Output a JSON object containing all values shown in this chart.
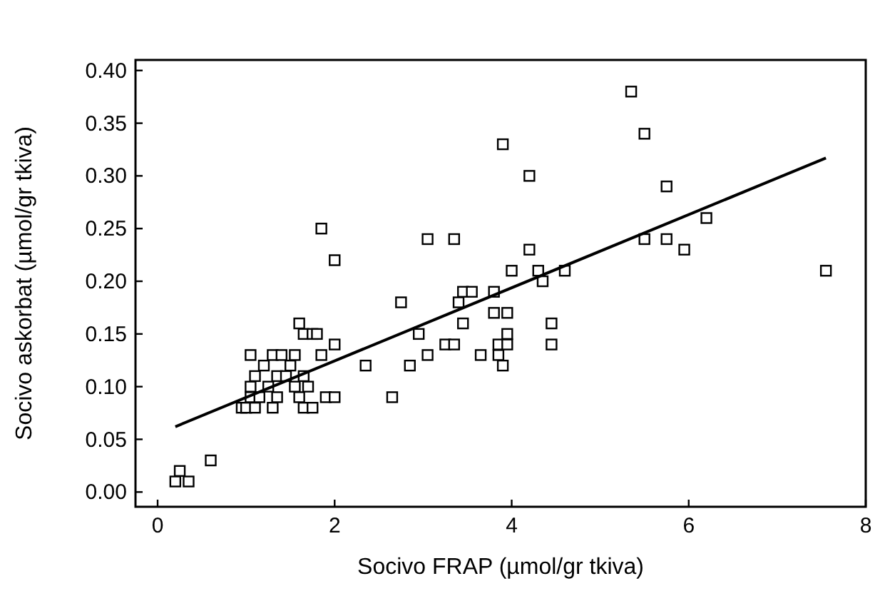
{
  "chart_data": {
    "type": "scatter",
    "xlabel": "Socivo FRAP (µmol/gr tkiva)",
    "ylabel": "Socivo askorbat (µmol/gr tkiva)",
    "xlim": [
      -0.25,
      8
    ],
    "ylim": [
      -0.014,
      0.41
    ],
    "xticks": [
      0,
      2,
      4,
      6,
      8
    ],
    "yticks": [
      {
        "value": 0,
        "label": "0.00"
      },
      {
        "value": 0.05,
        "label": "0.05"
      },
      {
        "value": 0.1,
        "label": "0.10"
      },
      {
        "value": 0.15,
        "label": "0.15"
      },
      {
        "value": 0.2,
        "label": "0.20"
      },
      {
        "value": 0.25,
        "label": "0.25"
      },
      {
        "value": 0.3,
        "label": "0.30"
      },
      {
        "value": 0.35,
        "label": "0.35"
      },
      {
        "value": 0.4,
        "label": "0.40"
      }
    ],
    "grid": false,
    "series": [
      {
        "color": "#000000",
        "marker": "square",
        "x": [
          0.2,
          0.25,
          0.35,
          0.6,
          0.95,
          1.0,
          1.05,
          1.05,
          1.05,
          1.1,
          1.1,
          1.15,
          1.2,
          1.25,
          1.3,
          1.3,
          1.35,
          1.35,
          1.4,
          1.45,
          1.5,
          1.55,
          1.55,
          1.6,
          1.6,
          1.65,
          1.65,
          1.65,
          1.7,
          1.75,
          1.75,
          1.8,
          1.85,
          1.85,
          1.9,
          2.0,
          2.0,
          2.0,
          2.35,
          2.65,
          2.75,
          2.85,
          2.95,
          3.05,
          3.05,
          3.25,
          3.35,
          3.35,
          3.4,
          3.45,
          3.45,
          3.55,
          3.65,
          3.8,
          3.8,
          3.85,
          3.85,
          3.9,
          3.9,
          3.95,
          3.95,
          3.95,
          4.0,
          4.2,
          4.2,
          4.3,
          4.35,
          4.45,
          4.45,
          4.6,
          5.35,
          5.5,
          5.5,
          5.75,
          5.75,
          5.95,
          6.2,
          7.55
        ],
        "values": [
          0.01,
          0.02,
          0.01,
          0.03,
          0.08,
          0.08,
          0.09,
          0.1,
          0.13,
          0.11,
          0.08,
          0.09,
          0.12,
          0.1,
          0.13,
          0.08,
          0.09,
          0.11,
          0.13,
          0.11,
          0.12,
          0.13,
          0.1,
          0.16,
          0.09,
          0.11,
          0.08,
          0.15,
          0.1,
          0.15,
          0.08,
          0.15,
          0.13,
          0.25,
          0.09,
          0.14,
          0.22,
          0.09,
          0.12,
          0.09,
          0.18,
          0.12,
          0.15,
          0.24,
          0.13,
          0.14,
          0.24,
          0.14,
          0.18,
          0.19,
          0.16,
          0.19,
          0.13,
          0.19,
          0.17,
          0.13,
          0.14,
          0.33,
          0.12,
          0.17,
          0.15,
          0.14,
          0.21,
          0.23,
          0.3,
          0.21,
          0.2,
          0.16,
          0.14,
          0.21,
          0.38,
          0.34,
          0.24,
          0.29,
          0.24,
          0.23,
          0.26,
          0.21
        ]
      },
      {
        "type": "line",
        "color": "#000000",
        "marker": "none",
        "line_style": "solid",
        "x": [
          0.2,
          7.55
        ],
        "values": [
          0.062,
          0.317
        ]
      }
    ]
  }
}
